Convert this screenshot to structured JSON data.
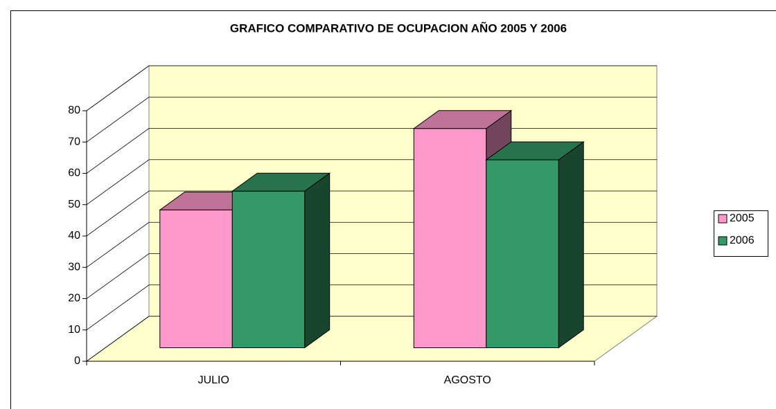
{
  "chart_data": {
    "type": "bar",
    "title": "GRAFICO COMPARATIVO DE OCUPACION AÑO 2005 Y 2006",
    "categories": [
      "JULIO",
      "AGOSTO"
    ],
    "series": [
      {
        "name": "2005",
        "color": "#ff99cc",
        "values": [
          44,
          70
        ]
      },
      {
        "name": "2006",
        "color": "#339966",
        "values": [
          50,
          60
        ]
      }
    ],
    "ylim": [
      0,
      80
    ],
    "yticks": [
      0,
      10,
      20,
      30,
      40,
      50,
      60,
      70,
      80
    ],
    "grid": true,
    "legend": "right"
  }
}
